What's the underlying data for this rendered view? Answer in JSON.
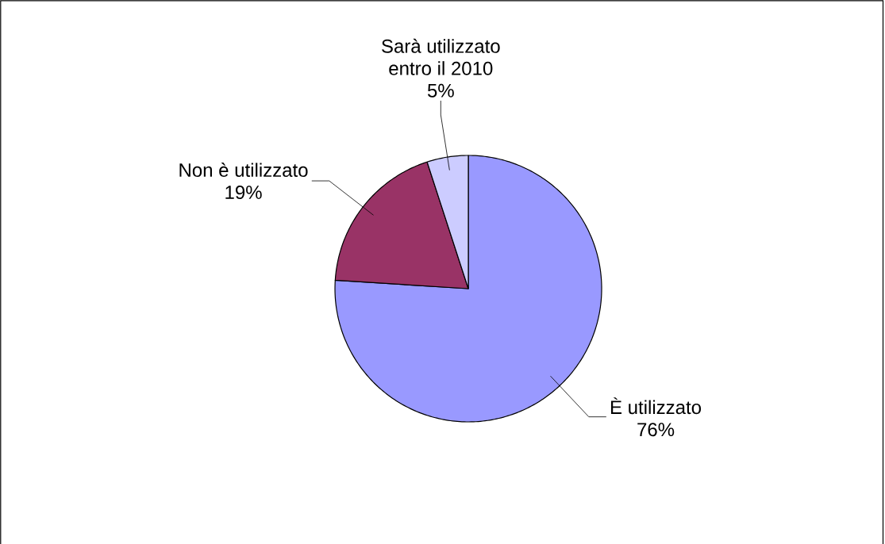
{
  "chart_data": {
    "type": "pie",
    "categories": [
      "È utilizzato",
      "Non è utilizzato",
      "Sarà utilizzato entro il 2010"
    ],
    "values": [
      76,
      19,
      5
    ],
    "colors": [
      "#9999ff",
      "#993366",
      "#ccccff"
    ],
    "value_labels": [
      "76%",
      "19%",
      "5%"
    ]
  }
}
